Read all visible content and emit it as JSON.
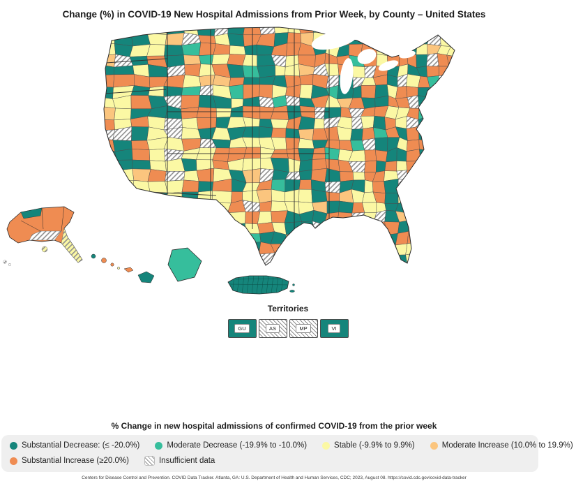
{
  "title": "Change (%) in COVID-19 New Hospital Admissions from Prior Week, by County – United States",
  "map": {
    "territories_label": "Territories",
    "territories": [
      {
        "code": "GU",
        "category": "substantial_decrease"
      },
      {
        "code": "AS",
        "category": "insufficient"
      },
      {
        "code": "MP",
        "category": "insufficient"
      },
      {
        "code": "VI",
        "category": "substantial_decrease"
      }
    ]
  },
  "legend": {
    "title": "% Change in new hospital admissions of confirmed COVID-19 from the prior week",
    "items": [
      {
        "label": "Substantial Decrease: (≤ -20.0%)",
        "category": "substantial_decrease"
      },
      {
        "label": "Moderate Decrease (-19.9% to -10.0%)",
        "category": "moderate_decrease"
      },
      {
        "label": "Stable (-9.9% to 9.9%)",
        "category": "stable"
      },
      {
        "label": "Moderate Increase (10.0% to 19.9%)",
        "category": "moderate_increase"
      },
      {
        "label": "Substantial Increase (≥20.0%)",
        "category": "substantial_increase"
      },
      {
        "label": "Insufficient data",
        "category": "insufficient"
      }
    ]
  },
  "colors": {
    "substantial_decrease": "#15857B",
    "moderate_decrease": "#36BE9C",
    "stable": "#FBF8A4",
    "moderate_increase": "#FBC57E",
    "substantial_increase": "#EF8C52",
    "insufficient_hatch": "#8F8F8F",
    "county_border": "#4A4A4A",
    "outline": "#2B2B2B"
  },
  "footer": "Centers for Disease Control and Prevention. COVID Data Tracker. Atlanta, GA: U.S. Department of Health and Human Services, CDC; 2023, August 08. https://covid.cdc.gov/covid-data-tracker"
}
